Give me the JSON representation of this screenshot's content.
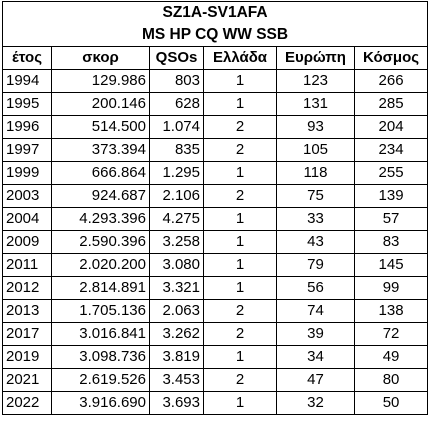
{
  "table": {
    "title_line1": "SZ1A-SV1AFA",
    "title_line2": "MS HP CQ WW SSB",
    "headers": [
      "έτος",
      "σκορ",
      "QSOs",
      "Ελλάδα",
      "Ευρώπη",
      "Κόσμος"
    ],
    "rows": [
      [
        "1994",
        "129.986",
        "803",
        "1",
        "123",
        "266"
      ],
      [
        "1995",
        "200.146",
        "628",
        "1",
        "131",
        "285"
      ],
      [
        "1996",
        "514.500",
        "1.074",
        "2",
        "93",
        "204"
      ],
      [
        "1997",
        "373.394",
        "835",
        "2",
        "105",
        "234"
      ],
      [
        "1999",
        "666.864",
        "1.295",
        "1",
        "118",
        "255"
      ],
      [
        "2003",
        "924.687",
        "2.106",
        "2",
        "75",
        "139"
      ],
      [
        "2004",
        "4.293.396",
        "4.275",
        "1",
        "33",
        "57"
      ],
      [
        "2009",
        "2.590.396",
        "3.258",
        "1",
        "43",
        "83"
      ],
      [
        "2011",
        "2.020.200",
        "3.080",
        "1",
        "79",
        "145"
      ],
      [
        "2012",
        "2.814.891",
        "3.321",
        "1",
        "56",
        "99"
      ],
      [
        "2013",
        "1.705.136",
        "2.063",
        "2",
        "74",
        "138"
      ],
      [
        "2017",
        "3.016.841",
        "3.262",
        "2",
        "39",
        "72"
      ],
      [
        "2019",
        "3.098.736",
        "3.819",
        "1",
        "34",
        "49"
      ],
      [
        "2021",
        "2.619.526",
        "3.453",
        "2",
        "47",
        "80"
      ],
      [
        "2022",
        "3.916.690",
        "3.693",
        "1",
        "32",
        "50"
      ]
    ]
  }
}
